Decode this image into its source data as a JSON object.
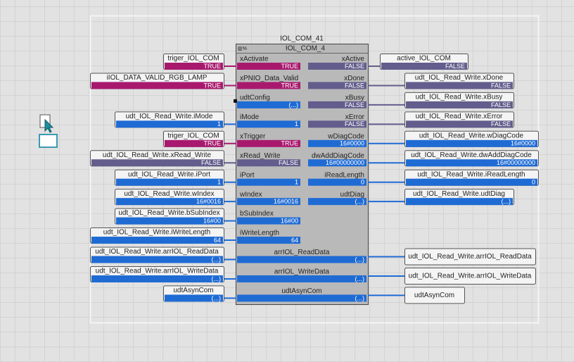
{
  "block": {
    "instance": "IOL_COM_41",
    "type": "IOL_COM_4"
  },
  "inputs": [
    {
      "pin": "xActivate",
      "value": "TRUE",
      "variable": "triger_IOL_COM",
      "variable_value": "TRUE"
    },
    {
      "pin": "xPNIO_Data_Valid",
      "value": "TRUE",
      "variable": "iIOL_DATA_VALID_RGB_LAMP",
      "variable_value": "TRUE"
    },
    {
      "pin": "udtConfig",
      "value": "(...)"
    },
    {
      "pin": "iMode",
      "value": "1",
      "variable": "udt_IOL_Read_Write.iMode",
      "variable_value": "1"
    },
    {
      "pin": "xTrigger",
      "value": "TRUE",
      "variable": "triger_IOL_COM",
      "variable_value": "TRUE"
    },
    {
      "pin": "xRead_Write",
      "value": "FALSE",
      "variable": "udt_IOL_Read_Write.xRead_Write",
      "variable_value": "FALSE"
    },
    {
      "pin": "iPort",
      "value": "1",
      "variable": "udt_IOL_Read_Write.iPort",
      "variable_value": "1"
    },
    {
      "pin": "wIndex",
      "value": "16#0016",
      "variable": "udt_IOL_Read_Write.wIndex",
      "variable_value": "16#0016"
    },
    {
      "pin": "bSubIndex",
      "value": "16#00",
      "variable": "udt_IOL_Read_Write.bSubIndex",
      "variable_value": "16#00"
    },
    {
      "pin": "iWriteLength",
      "value": "64",
      "variable": "udt_IOL_Read_Write.iWriteLength",
      "variable_value": "64"
    }
  ],
  "inouts": [
    {
      "pin": "arrIOL_ReadData",
      "value": "(...)",
      "input_variable": "udt_IOL_Read_Write.arrIOL_ReadData",
      "input_value": "(...)",
      "output_variable": "udt_IOL_Read_Write.arrIOL_ReadData"
    },
    {
      "pin": "arrIOL_WriteData",
      "value": "(...)",
      "input_variable": "udt_IOL_Read_Write.arrIOL_WriteData",
      "input_value": "(...)",
      "output_variable": "udt_IOL_Read_Write.arrIOL_WriteData"
    },
    {
      "pin": "udtAsynCom",
      "value": "(...)",
      "input_variable": "udtAsynCom",
      "input_value": "(...)",
      "output_variable": "udtAsynCom"
    }
  ],
  "outputs": [
    {
      "pin": "xActive",
      "value": "FALSE",
      "variable": "active_IOL_COM",
      "variable_value": "FALSE"
    },
    {
      "pin": "xDone",
      "value": "FALSE",
      "variable": "udt_IOL_Read_Write.xDone",
      "variable_value": "FALSE"
    },
    {
      "pin": "xBusy",
      "value": "FALSE",
      "variable": "udt_IOL_Read_Write.xBusy",
      "variable_value": "FALSE"
    },
    {
      "pin": "xError",
      "value": "FALSE",
      "variable": "udt_IOL_Read_Write.xError",
      "variable_value": "FALSE"
    },
    {
      "pin": "wDiagCode",
      "value": "16#0000",
      "variable": "udt_IOL_Read_Write.wDiagCode",
      "variable_value": "16#0000"
    },
    {
      "pin": "dwAddDiagCode",
      "value": "16#00000000",
      "variable": "udt_IOL_Read_Write.dwAddDiagCode",
      "variable_value": "16#00000000"
    },
    {
      "pin": "iReadLength",
      "value": "0",
      "variable": "udt_IOL_Read_Write.iReadLength",
      "variable_value": "0"
    },
    {
      "pin": "udtDiag",
      "value": "(...)",
      "variable": "udt_IOL_Read_Write.udtDiag",
      "variable_value": "(...)"
    }
  ]
}
